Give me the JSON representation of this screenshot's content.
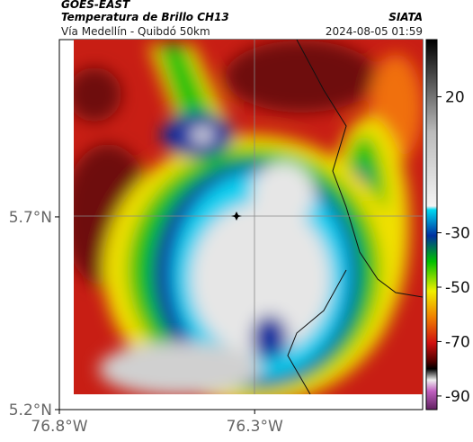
{
  "header": {
    "source": "GOES-EAST",
    "title": "Temperatura de Brillo CH13",
    "subtitle": "Vía Medellín - Quibdó 50km",
    "agency": "SIATA",
    "timestamp": "2024-08-05 01:59"
  },
  "map": {
    "xlim": [
      -76.8,
      -75.87
    ],
    "ylim": [
      5.2,
      6.16
    ],
    "xticks": [
      {
        "value": -76.8,
        "label": "76.8°W"
      },
      {
        "value": -76.3,
        "label": "76.3°W"
      }
    ],
    "yticks": [
      {
        "value": 5.2,
        "label": "5.2°N"
      },
      {
        "value": 5.7,
        "label": "5.7°N"
      }
    ]
  },
  "colorbar": {
    "lim": [
      -95,
      41
    ],
    "ticks": [
      20,
      -30,
      -50,
      -70,
      -90
    ]
  }
}
